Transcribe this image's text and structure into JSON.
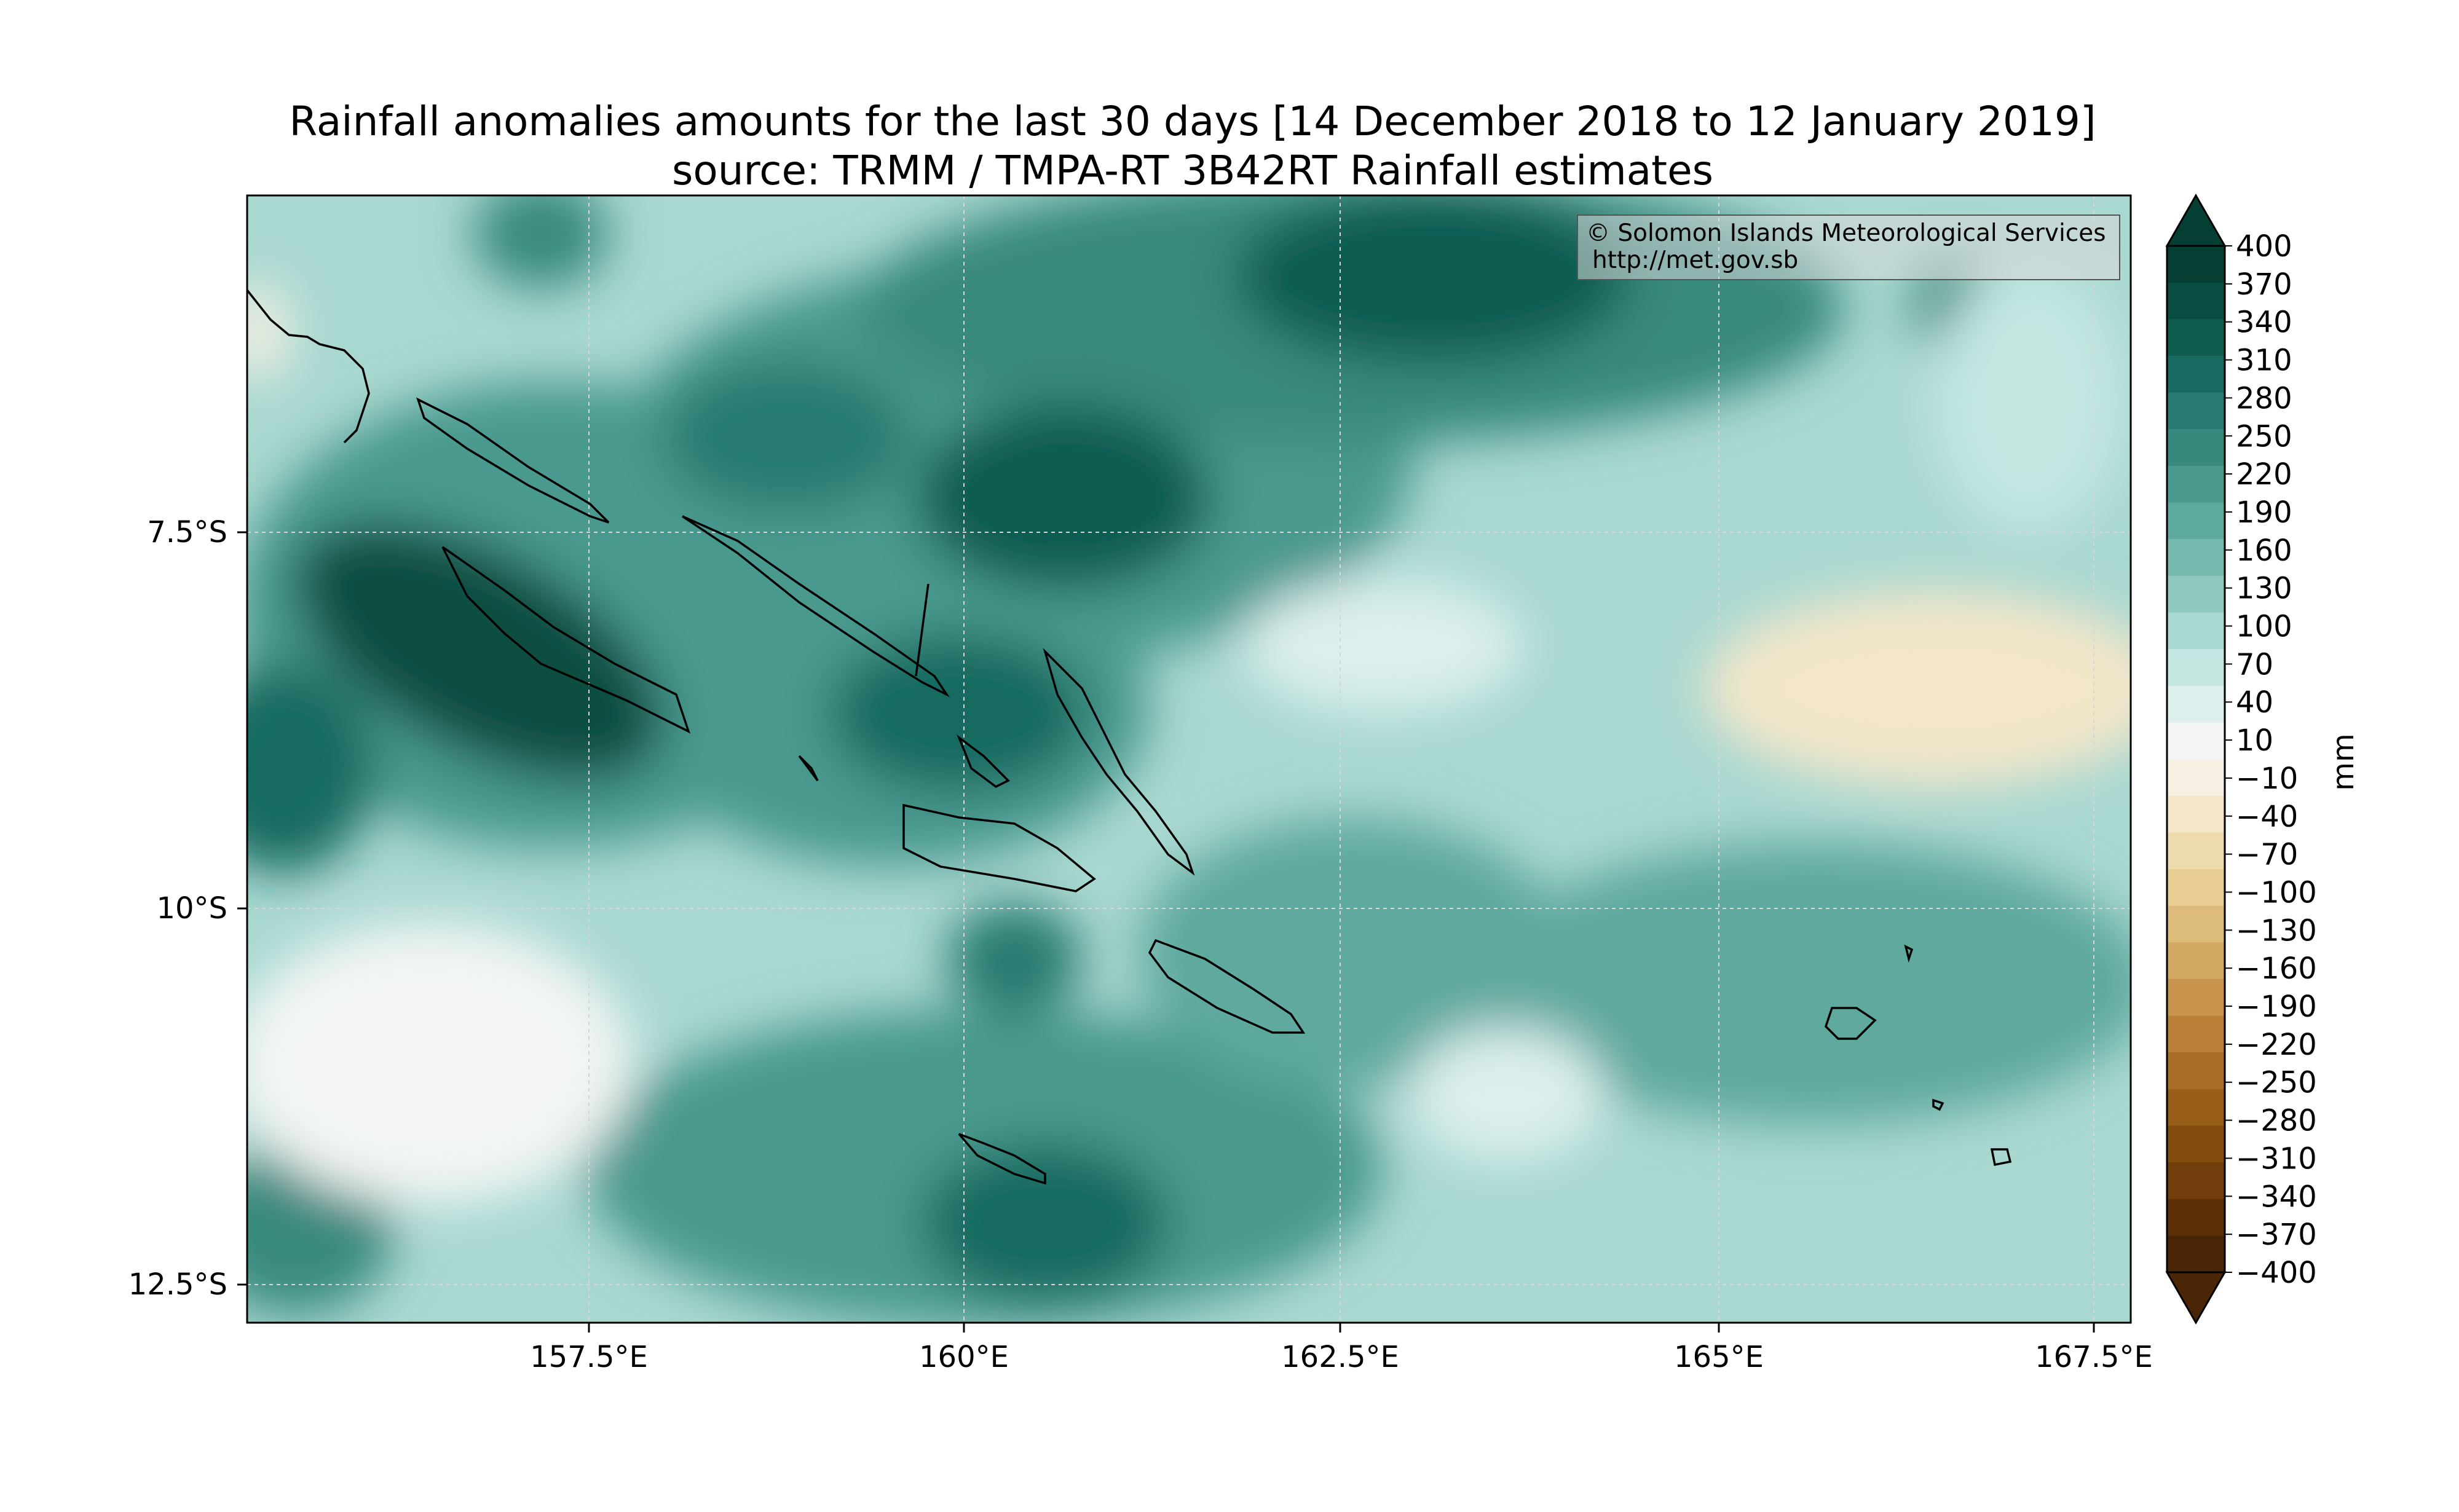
{
  "title": {
    "line1": "Rainfall anomalies amounts for the last 30 days [14 December 2018 to 12 January 2019]",
    "line2": "source: TRMM / TMPA-RT 3B42RT Rainfall estimates"
  },
  "attribution": {
    "line1": "© Solomon Islands Meteorological Services",
    "line2": "http://met.gov.sb"
  },
  "axes": {
    "x_ticks": [
      "157.5°E",
      "160°E",
      "162.5°E",
      "165°E",
      "167.5°E"
    ],
    "y_ticks": [
      "7.5°S",
      "10°S",
      "12.5°S"
    ]
  },
  "colorbar": {
    "unit": "mm",
    "labels": [
      "400",
      "370",
      "340",
      "310",
      "280",
      "250",
      "220",
      "190",
      "160",
      "130",
      "100",
      "70",
      "40",
      "10",
      "−10",
      "−40",
      "−70",
      "−100",
      "−130",
      "−160",
      "−190",
      "−220",
      "−250",
      "−280",
      "−310",
      "−340",
      "−370",
      "−400"
    ],
    "colors": [
      "#053f33",
      "#0a4d42",
      "#0f5c51",
      "#176a60",
      "#277a6f",
      "#37897e",
      "#4a998e",
      "#5ea99e",
      "#76b9af",
      "#8fc8bf",
      "#a9d8d1",
      "#c3e6e1",
      "#dcefec",
      "#f2f5f4",
      "#f6f0e3",
      "#f3e6c9",
      "#eedbad",
      "#e8ce93",
      "#ddbb7a",
      "#d2a762",
      "#c8944e",
      "#ba8038",
      "#a96e27",
      "#975d19",
      "#844d10",
      "#703d0b",
      "#5c3108",
      "#4a2606"
    ]
  },
  "map": {
    "projection": "Plate Carrée",
    "lon_range": [
      155.2,
      167.6
    ],
    "lat_range": [
      -12.75,
      -5.3
    ],
    "gridlines": true
  }
}
